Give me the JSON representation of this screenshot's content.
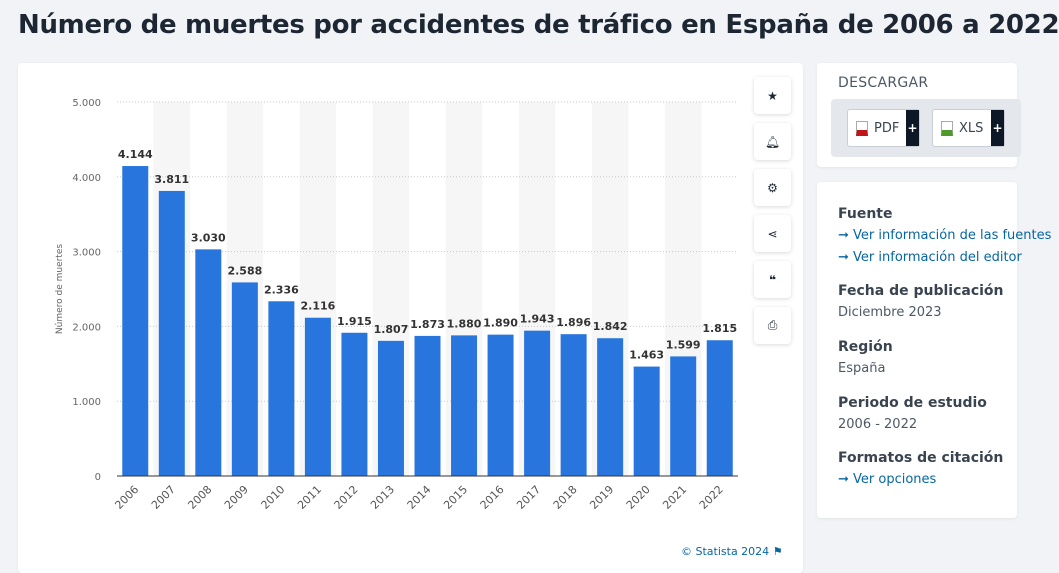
{
  "title": "Número de muertes por accidentes de tráfico en España de 2006 a 2022",
  "toolbar": {
    "icons": [
      "star-icon",
      "bell-icon",
      "gear-icon",
      "share-icon",
      "quote-icon",
      "print-icon"
    ]
  },
  "credit": "© Statista 2024",
  "download": {
    "title": "DESCARGAR",
    "pdf": "PDF",
    "xls": "XLS",
    "plus": "+"
  },
  "info": {
    "fuente_label": "Fuente",
    "fuente_link1": "Ver información de las fuentes",
    "fuente_link2": "Ver información del editor",
    "fecha_label": "Fecha de publicación",
    "fecha_value": "Diciembre 2023",
    "region_label": "Región",
    "region_value": "España",
    "periodo_label": "Periodo de estudio",
    "periodo_value": "2006 - 2022",
    "formatos_label": "Formatos de citación",
    "formatos_link": "Ver opciones"
  },
  "colors": {
    "bar": "#2876dd",
    "link": "#0666a3"
  },
  "chart_data": {
    "type": "bar",
    "categories": [
      "2006",
      "2007",
      "2008",
      "2009",
      "2010",
      "2011",
      "2012",
      "2013",
      "2014",
      "2015",
      "2016",
      "2017",
      "2018",
      "2019",
      "2020",
      "2021",
      "2022"
    ],
    "values": [
      4144,
      3811,
      3030,
      2588,
      2336,
      2116,
      1915,
      1807,
      1873,
      1880,
      1890,
      1943,
      1896,
      1842,
      1463,
      1599,
      1815
    ],
    "data_labels": [
      "4.144",
      "3.811",
      "3.030",
      "2.588",
      "2.336",
      "2.116",
      "1.915",
      "1.807",
      "1.873",
      "1.880",
      "1.890",
      "1.943",
      "1.896",
      "1.842",
      "1.463",
      "1.599",
      "1.815"
    ],
    "ylabel": "Número de muertes",
    "xlabel": "",
    "ylim": [
      0,
      5000
    ],
    "yticks": [
      0,
      1000,
      2000,
      3000,
      4000,
      5000
    ],
    "ytick_labels": [
      "0",
      "1.000",
      "2.000",
      "3.000",
      "4.000",
      "5.000"
    ],
    "grid": true
  }
}
